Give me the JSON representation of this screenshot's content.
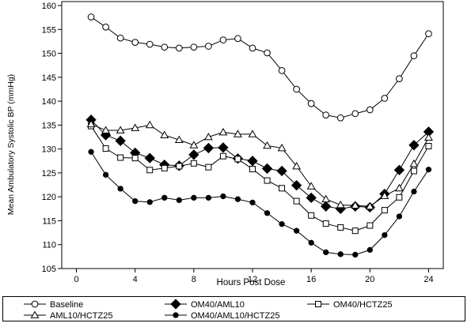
{
  "chart_data": {
    "type": "line",
    "title": "",
    "xlabel": "Hours Post Dose",
    "ylabel": "Mean Ambulatory Systolic BP (mmHg)",
    "xlim": [
      -1,
      25
    ],
    "ylim": [
      105,
      160
    ],
    "xticks": [
      0,
      4,
      8,
      12,
      16,
      20,
      24
    ],
    "yticks": [
      105,
      110,
      115,
      120,
      125,
      130,
      135,
      140,
      145,
      150,
      155,
      160
    ],
    "grid": false,
    "legend_position": "bottom",
    "x": [
      1,
      2,
      3,
      4,
      5,
      6,
      7,
      8,
      9,
      10,
      11,
      12,
      13,
      14,
      15,
      16,
      17,
      18,
      19,
      20,
      21,
      22,
      23,
      24
    ],
    "series": [
      {
        "name": "Baseline",
        "marker": "circle-open",
        "values": [
          157.6,
          155.5,
          153.2,
          152.3,
          151.9,
          151.3,
          151.1,
          151.3,
          151.5,
          152.8,
          153.1,
          151.1,
          150.1,
          146.4,
          142.5,
          139.5,
          137.1,
          136.5,
          137.4,
          138.2,
          140.6,
          144.7,
          149.5,
          154.1
        ]
      },
      {
        "name": "OM40/AML10",
        "marker": "diamond-filled",
        "values": [
          136.1,
          132.9,
          131.7,
          129.2,
          128.1,
          126.7,
          126.5,
          128.8,
          130.2,
          130.3,
          128.0,
          127.5,
          125.9,
          125.4,
          122.4,
          119.8,
          118.0,
          117.5,
          118.0,
          117.8,
          120.6,
          125.6,
          130.8,
          133.6
        ]
      },
      {
        "name": "OM40/HCTZ25",
        "marker": "square-open",
        "values": [
          134.8,
          130.1,
          128.2,
          128.1,
          125.6,
          126.0,
          126.4,
          127.0,
          126.2,
          128.5,
          127.9,
          125.8,
          123.4,
          121.8,
          119.1,
          116.1,
          114.4,
          113.6,
          112.9,
          114.0,
          117.2,
          119.9,
          125.4,
          130.6
        ]
      },
      {
        "name": "AML10/HCTZ25",
        "marker": "triangle-open",
        "values": [
          135.2,
          133.9,
          133.9,
          134.4,
          135.0,
          132.9,
          131.9,
          130.8,
          132.5,
          133.5,
          133.1,
          133.1,
          130.7,
          130.2,
          126.4,
          122.2,
          119.5,
          118.3,
          118.2,
          118.0,
          120.2,
          121.8,
          126.9,
          132.4
        ]
      },
      {
        "name": "OM40/AML10/HCTZ25",
        "marker": "circle-filled",
        "values": [
          129.4,
          124.6,
          121.7,
          119.1,
          118.9,
          119.8,
          119.3,
          119.8,
          119.8,
          120.1,
          119.5,
          118.8,
          116.6,
          114.3,
          112.9,
          110.4,
          108.4,
          108.0,
          107.9,
          108.9,
          112.0,
          115.9,
          121.1,
          125.7
        ]
      }
    ]
  }
}
